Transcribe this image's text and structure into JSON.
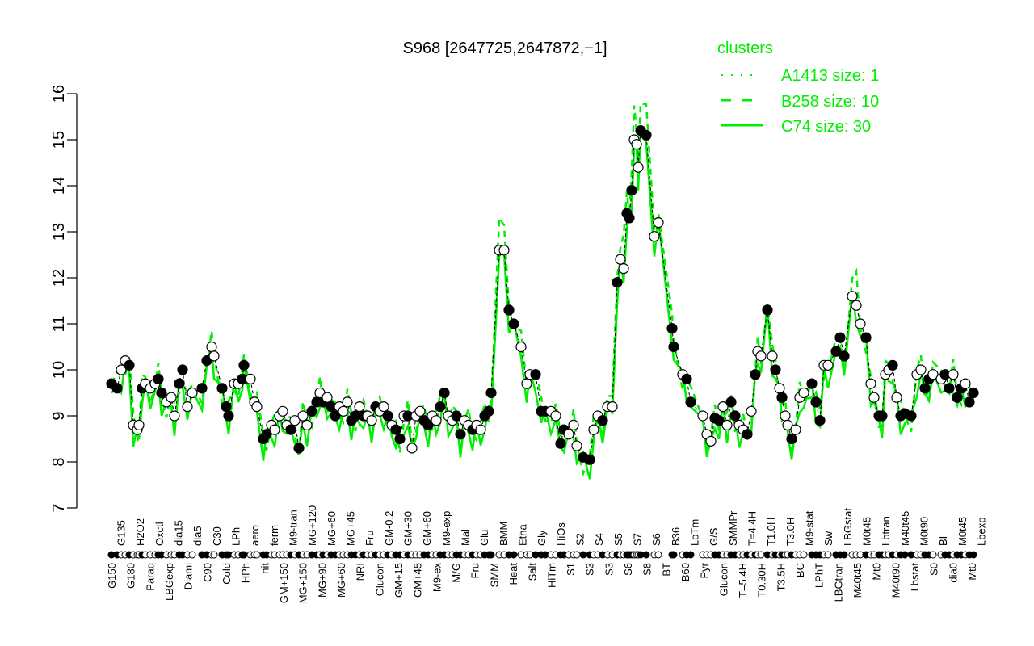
{
  "chart_data": {
    "type": "line",
    "title": "S968 [2647725,2647872,−1]",
    "xlabel": "",
    "ylabel": "",
    "ylim": [
      7,
      16
    ],
    "xlim": [
      0,
      216
    ],
    "yticks": [
      7,
      8,
      9,
      10,
      11,
      12,
      13,
      14,
      15,
      16
    ],
    "grid": false,
    "legend": {
      "title": "clusters",
      "placement": "top-right",
      "color": "#00ee00",
      "entries": [
        {
          "label": "A1413 size: 1",
          "style": "dotted"
        },
        {
          "label": "B258 size: 10",
          "style": "dashed"
        },
        {
          "label": "C74 size: 30",
          "style": "solid"
        }
      ]
    },
    "points": [
      [
        1.6,
        9.7,
        1
      ],
      [
        3,
        9.6,
        1
      ],
      [
        4,
        10.0,
        0
      ],
      [
        5,
        10.2,
        0
      ],
      [
        6,
        10.1,
        1
      ],
      [
        7,
        8.8,
        0
      ],
      [
        8,
        8.7,
        0
      ],
      [
        8.4,
        8.8,
        0
      ],
      [
        9.2,
        9.6,
        1
      ],
      [
        10,
        9.7,
        0
      ],
      [
        11.2,
        9.6,
        0
      ],
      [
        12.4,
        9.7,
        0
      ],
      [
        13.2,
        9.8,
        1
      ],
      [
        14,
        9.5,
        1
      ],
      [
        15.2,
        9.3,
        0
      ],
      [
        16.4,
        9.4,
        0
      ],
      [
        17.2,
        9.0,
        0
      ],
      [
        18.4,
        9.7,
        1
      ],
      [
        19.2,
        10.0,
        1
      ],
      [
        20.4,
        9.2,
        0
      ],
      [
        21.6,
        9.5,
        0
      ],
      [
        24,
        9.6,
        1
      ],
      [
        25.2,
        10.2,
        1
      ],
      [
        26.4,
        10.5,
        0
      ],
      [
        27,
        10.3,
        0
      ],
      [
        29,
        9.6,
        1
      ],
      [
        30,
        9.2,
        1
      ],
      [
        30.6,
        9.0,
        1
      ],
      [
        32,
        9.7,
        0
      ],
      [
        33,
        9.7,
        0
      ],
      [
        34,
        9.8,
        1
      ],
      [
        34.4,
        10.1,
        1
      ],
      [
        36,
        9.8,
        0
      ],
      [
        37,
        9.3,
        0
      ],
      [
        37.6,
        9.2,
        0
      ],
      [
        39.2,
        8.5,
        1
      ],
      [
        40,
        8.6,
        1
      ],
      [
        41.2,
        8.8,
        0
      ],
      [
        42,
        8.7,
        0
      ],
      [
        43.2,
        9.0,
        0
      ],
      [
        44,
        9.1,
        0
      ],
      [
        45,
        8.8,
        0
      ],
      [
        46,
        8.7,
        1
      ],
      [
        47,
        8.9,
        0
      ],
      [
        48,
        8.3,
        1
      ],
      [
        49,
        9.0,
        0
      ],
      [
        50,
        8.8,
        0
      ],
      [
        51.2,
        9.1,
        1
      ],
      [
        52.4,
        9.3,
        1
      ],
      [
        53.2,
        9.5,
        0
      ],
      [
        54,
        9.3,
        1
      ],
      [
        55,
        9.4,
        0
      ],
      [
        56,
        9.2,
        1
      ],
      [
        57,
        9.0,
        1
      ],
      [
        58,
        9.2,
        0
      ],
      [
        59,
        9.1,
        0
      ],
      [
        60,
        9.3,
        0
      ],
      [
        61,
        8.9,
        1
      ],
      [
        62,
        9.0,
        1
      ],
      [
        63,
        9.2,
        0
      ],
      [
        64,
        9.0,
        1
      ],
      [
        65,
        9.0,
        0
      ],
      [
        66,
        8.9,
        0
      ],
      [
        67,
        9.2,
        1
      ],
      [
        68,
        9.1,
        0
      ],
      [
        69,
        9.2,
        0
      ],
      [
        70,
        9.0,
        1
      ],
      [
        71,
        8.8,
        0
      ],
      [
        72,
        8.7,
        1
      ],
      [
        73,
        8.5,
        1
      ],
      [
        74,
        9.0,
        0
      ],
      [
        75,
        9.0,
        1
      ],
      [
        76,
        8.3,
        0
      ],
      [
        77,
        9.0,
        0
      ],
      [
        78,
        9.1,
        0
      ],
      [
        79,
        8.9,
        1
      ],
      [
        80,
        8.8,
        1
      ],
      [
        81,
        9.0,
        0
      ],
      [
        82,
        8.9,
        0
      ],
      [
        83,
        9.2,
        1
      ],
      [
        84,
        9.5,
        1
      ],
      [
        85,
        9.0,
        0
      ],
      [
        86,
        8.9,
        0
      ],
      [
        87,
        9.0,
        1
      ],
      [
        88,
        8.6,
        1
      ],
      [
        89,
        8.9,
        0
      ],
      [
        90,
        8.8,
        0
      ],
      [
        91,
        8.7,
        1
      ],
      [
        92,
        8.8,
        0
      ],
      [
        93,
        8.7,
        0
      ],
      [
        94,
        9.0,
        1
      ],
      [
        95,
        9.1,
        1
      ],
      [
        95.6,
        9.5,
        1
      ],
      [
        97.6,
        12.6,
        0
      ],
      [
        98.8,
        12.6,
        0
      ],
      [
        100,
        11.3,
        1
      ],
      [
        101.2,
        11.0,
        1
      ],
      [
        103,
        10.5,
        0
      ],
      [
        104.4,
        9.7,
        0
      ],
      [
        105.2,
        9.9,
        0
      ],
      [
        106.6,
        9.9,
        1
      ],
      [
        108,
        9.1,
        1
      ],
      [
        109,
        9.1,
        1
      ],
      [
        110.4,
        9.1,
        0
      ],
      [
        111.6,
        9.0,
        0
      ],
      [
        112.8,
        8.4,
        1
      ],
      [
        113.6,
        8.7,
        1
      ],
      [
        114.8,
        8.6,
        0
      ],
      [
        116,
        8.8,
        0
      ],
      [
        116.8,
        8.35,
        0
      ],
      [
        118.4,
        8.1,
        1
      ],
      [
        120,
        8.05,
        1
      ],
      [
        121,
        8.7,
        0
      ],
      [
        122,
        9.0,
        0
      ],
      [
        123.2,
        8.9,
        1
      ],
      [
        124.4,
        9.2,
        0
      ],
      [
        125.6,
        9.2,
        0
      ],
      [
        126.8,
        11.9,
        1
      ],
      [
        127.6,
        12.4,
        0
      ],
      [
        128.4,
        12.2,
        0
      ],
      [
        129.2,
        13.4,
        1
      ],
      [
        129.8,
        13.3,
        1
      ],
      [
        130.4,
        13.9,
        1
      ],
      [
        131,
        15.0,
        0
      ],
      [
        131.6,
        14.9,
        0
      ],
      [
        132,
        14.4,
        0
      ],
      [
        132.6,
        15.2,
        1
      ],
      [
        134,
        15.1,
        1
      ],
      [
        136,
        12.9,
        0
      ],
      [
        137,
        13.2,
        0
      ],
      [
        140.4,
        10.9,
        1
      ],
      [
        140.8,
        10.5,
        1
      ],
      [
        143,
        9.9,
        0
      ],
      [
        144,
        9.8,
        1
      ],
      [
        145,
        9.3,
        1
      ],
      [
        148,
        9.0,
        0
      ],
      [
        149,
        8.6,
        0
      ],
      [
        150,
        8.45,
        0
      ],
      [
        151,
        8.95,
        1
      ],
      [
        152,
        8.9,
        1
      ],
      [
        153,
        9.2,
        0
      ],
      [
        154,
        8.8,
        0
      ],
      [
        155,
        9.3,
        1
      ],
      [
        156,
        9.0,
        1
      ],
      [
        157,
        8.8,
        0
      ],
      [
        158,
        8.7,
        0
      ],
      [
        159,
        8.6,
        1
      ],
      [
        160,
        9.1,
        0
      ],
      [
        161,
        9.9,
        1
      ],
      [
        161.6,
        10.4,
        0
      ],
      [
        162.4,
        10.3,
        0
      ],
      [
        164,
        11.3,
        1
      ],
      [
        165.2,
        10.3,
        0
      ],
      [
        166,
        10.0,
        1
      ],
      [
        167,
        9.6,
        0
      ],
      [
        167.6,
        9.4,
        1
      ],
      [
        168.4,
        9.0,
        0
      ],
      [
        169,
        8.8,
        0
      ],
      [
        170,
        8.5,
        1
      ],
      [
        171,
        8.7,
        0
      ],
      [
        172,
        9.4,
        0
      ],
      [
        173,
        9.5,
        0
      ],
      [
        175,
        9.7,
        1
      ],
      [
        176,
        9.3,
        1
      ],
      [
        177,
        8.9,
        1
      ],
      [
        178,
        10.1,
        0
      ],
      [
        179,
        10.1,
        0
      ],
      [
        181,
        10.4,
        1
      ],
      [
        182,
        10.7,
        1
      ],
      [
        183,
        10.3,
        1
      ],
      [
        185,
        11.6,
        0
      ],
      [
        186,
        11.4,
        0
      ],
      [
        187,
        11.0,
        0
      ],
      [
        188.4,
        10.7,
        1
      ],
      [
        189.6,
        9.7,
        0
      ],
      [
        190.4,
        9.4,
        0
      ],
      [
        191.6,
        9.0,
        1
      ],
      [
        192.4,
        9.0,
        1
      ],
      [
        193.2,
        9.9,
        0
      ],
      [
        194,
        10.0,
        0
      ],
      [
        195,
        10.1,
        1
      ],
      [
        196,
        9.4,
        0
      ],
      [
        197,
        9.0,
        1
      ],
      [
        198,
        9.05,
        1
      ],
      [
        199.6,
        9.0,
        1
      ],
      [
        201,
        9.9,
        0
      ],
      [
        202,
        10.0,
        0
      ],
      [
        203,
        9.6,
        1
      ],
      [
        204,
        9.8,
        1
      ],
      [
        205,
        9.9,
        0
      ],
      [
        207,
        9.8,
        0
      ],
      [
        208,
        9.9,
        1
      ],
      [
        209,
        9.6,
        1
      ],
      [
        210,
        9.9,
        0
      ],
      [
        211,
        9.4,
        1
      ],
      [
        212,
        9.6,
        1
      ],
      [
        213,
        9.7,
        0
      ],
      [
        214,
        9.3,
        1
      ],
      [
        215,
        9.5,
        1
      ]
    ],
    "xlabels_bottom": [
      "G150",
      "G180",
      "Paraq",
      "LBGexp",
      "Diami",
      "C90",
      "Cold",
      "HPh",
      "nit",
      "GM+150",
      "MG+150",
      "MG+90",
      "MG+60",
      "NRI",
      "Glucon",
      "GM+15",
      "GM+45",
      "M9-ex",
      "M/G",
      "Fru",
      "SMM",
      "Heat",
      "Salt",
      "HiTm",
      "S1",
      "S3",
      "S3",
      "S6",
      "S8",
      "BT",
      "B60",
      "Pyr",
      "Glucon",
      "T=5.4H",
      "T0.30H",
      "T3.5H",
      "BC",
      "LPhT",
      "LBGtran",
      "M40t45",
      "Mt0",
      "M40t90",
      "Lbstat",
      "S0",
      "dia0",
      "Mt0"
    ],
    "xlabels_top": [
      "G135",
      "H2O2",
      "Oxctl",
      "dia15",
      "dia5",
      "C30",
      "LPh",
      "aero",
      "ferm",
      "M9-tran",
      "MG+120",
      "MG+60",
      "MG+45",
      "Fru",
      "GM-0.2",
      "GM+30",
      "GM+60",
      "M9-exp",
      "Mal",
      "Glu",
      "BMM",
      "Etha",
      "Gly",
      "HiOs",
      "S2",
      "S4",
      "S5",
      "S7",
      "S6",
      "B36",
      "LoTm",
      "G/S",
      "SMMPr",
      "T=4.4H",
      "T1.0H",
      "T3.0H",
      "M9-stat",
      "Sw",
      "LBGstat",
      "M0t45",
      "Lbtran",
      "M40t45",
      "M0t90",
      "BI",
      "M0t45",
      "Lbexp"
    ]
  }
}
